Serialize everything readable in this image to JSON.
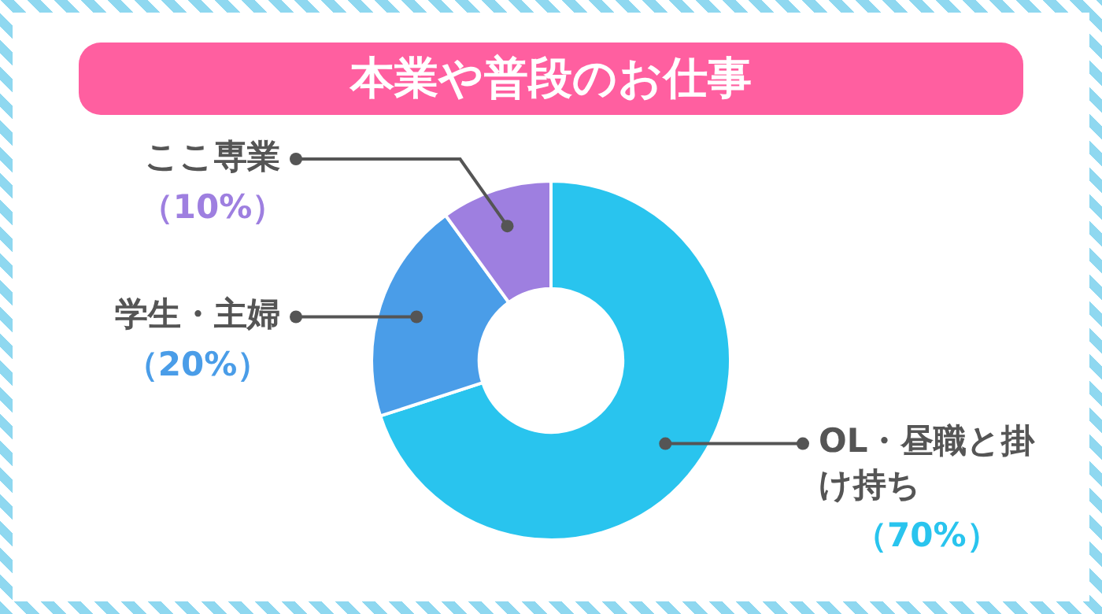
{
  "chart_data": {
    "type": "donut",
    "title": "本業や普段のお仕事",
    "categories": [
      "OL・昼職と掛け持ち",
      "学生・主婦",
      "ここ専業"
    ],
    "values": [
      70,
      20,
      10
    ],
    "colors": [
      "#29c4ee",
      "#4a9de8",
      "#9e7fe0"
    ],
    "value_labels": [
      "（70%）",
      "（20%）",
      "（10%）"
    ],
    "legend": false
  }
}
